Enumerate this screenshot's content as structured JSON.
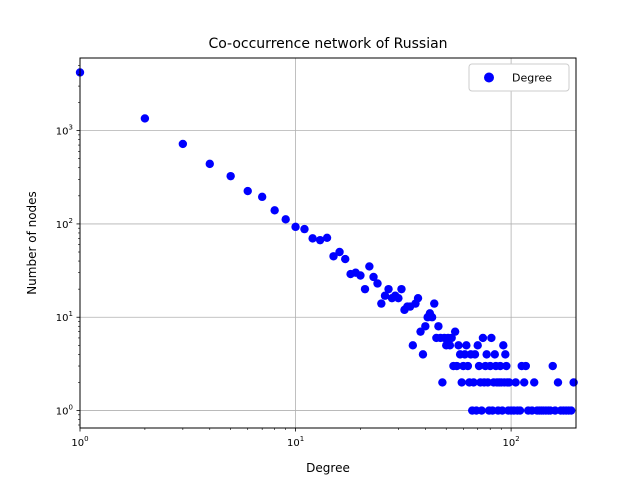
{
  "chart_data": {
    "type": "scatter",
    "title": "Co-occurrence network of Russian",
    "xlabel": "Degree",
    "ylabel": "Number of nodes",
    "xscale": "log",
    "yscale": "log",
    "xlim": [
      1,
      200
    ],
    "ylim": [
      0.65,
      6000
    ],
    "grid": true,
    "legend_placement": "top-right",
    "x_ticks": [
      {
        "value": 1,
        "exp": "0"
      },
      {
        "value": 10,
        "exp": "1"
      },
      {
        "value": 100,
        "exp": "2"
      }
    ],
    "y_ticks": [
      {
        "value": 1,
        "exp": "0"
      },
      {
        "value": 10,
        "exp": "1"
      },
      {
        "value": 100,
        "exp": "2"
      },
      {
        "value": 1000,
        "exp": "3"
      }
    ],
    "tick_base": "10",
    "marker_color": "#0000ff",
    "series": [
      {
        "name": "Degree",
        "points": [
          [
            1,
            4200
          ],
          [
            2,
            1350
          ],
          [
            3,
            720
          ],
          [
            4,
            440
          ],
          [
            5,
            325
          ],
          [
            6,
            225
          ],
          [
            7,
            195
          ],
          [
            8,
            140
          ],
          [
            9,
            112
          ],
          [
            10,
            93
          ],
          [
            11,
            88
          ],
          [
            12,
            70
          ],
          [
            13,
            67
          ],
          [
            14,
            71
          ],
          [
            15,
            45
          ],
          [
            16,
            50
          ],
          [
            17,
            42
          ],
          [
            18,
            29
          ],
          [
            19,
            30
          ],
          [
            20,
            28
          ],
          [
            21,
            20
          ],
          [
            22,
            35
          ],
          [
            23,
            27
          ],
          [
            24,
            23
          ],
          [
            25,
            14
          ],
          [
            26,
            17
          ],
          [
            27,
            20
          ],
          [
            28,
            16
          ],
          [
            29,
            17
          ],
          [
            30,
            16
          ],
          [
            31,
            20
          ],
          [
            32,
            12
          ],
          [
            33,
            13
          ],
          [
            34,
            13
          ],
          [
            35,
            5
          ],
          [
            36,
            14
          ],
          [
            37,
            16
          ],
          [
            38,
            7
          ],
          [
            39,
            4
          ],
          [
            40,
            8
          ],
          [
            41,
            10
          ],
          [
            42,
            11
          ],
          [
            43,
            10
          ],
          [
            44,
            14
          ],
          [
            45,
            6
          ],
          [
            46,
            8
          ],
          [
            47,
            6
          ],
          [
            48,
            2
          ],
          [
            49,
            6
          ],
          [
            50,
            5
          ],
          [
            51,
            6
          ],
          [
            52,
            5
          ],
          [
            53,
            6
          ],
          [
            54,
            3
          ],
          [
            55,
            7
          ],
          [
            56,
            3
          ],
          [
            57,
            5
          ],
          [
            58,
            4
          ],
          [
            59,
            2
          ],
          [
            60,
            3
          ],
          [
            61,
            4
          ],
          [
            62,
            5
          ],
          [
            63,
            3
          ],
          [
            64,
            2
          ],
          [
            65,
            4
          ],
          [
            66,
            1
          ],
          [
            67,
            2
          ],
          [
            68,
            4
          ],
          [
            69,
            1
          ],
          [
            70,
            5
          ],
          [
            71,
            3
          ],
          [
            72,
            2
          ],
          [
            73,
            1
          ],
          [
            74,
            6
          ],
          [
            75,
            2
          ],
          [
            76,
            3
          ],
          [
            77,
            4
          ],
          [
            78,
            2
          ],
          [
            79,
            1
          ],
          [
            80,
            3
          ],
          [
            81,
            6
          ],
          [
            82,
            1
          ],
          [
            83,
            2
          ],
          [
            84,
            4
          ],
          [
            85,
            3
          ],
          [
            86,
            2
          ],
          [
            87,
            1
          ],
          [
            88,
            2
          ],
          [
            89,
            3
          ],
          [
            90,
            2
          ],
          [
            91,
            1
          ],
          [
            92,
            5
          ],
          [
            93,
            2
          ],
          [
            94,
            4
          ],
          [
            95,
            3
          ],
          [
            96,
            2
          ],
          [
            97,
            1
          ],
          [
            98,
            2
          ],
          [
            100,
            1
          ],
          [
            103,
            1
          ],
          [
            105,
            2
          ],
          [
            107,
            1
          ],
          [
            110,
            1
          ],
          [
            112,
            3
          ],
          [
            115,
            2
          ],
          [
            117,
            3
          ],
          [
            120,
            1
          ],
          [
            125,
            1
          ],
          [
            128,
            2
          ],
          [
            132,
            1
          ],
          [
            135,
            1
          ],
          [
            138,
            1
          ],
          [
            141,
            1
          ],
          [
            145,
            1
          ],
          [
            149,
            1
          ],
          [
            152,
            1
          ],
          [
            156,
            3
          ],
          [
            160,
            1
          ],
          [
            165,
            2
          ],
          [
            170,
            1
          ],
          [
            175,
            1
          ],
          [
            180,
            1
          ],
          [
            185,
            1
          ],
          [
            190,
            1
          ],
          [
            195,
            2
          ]
        ]
      }
    ]
  }
}
